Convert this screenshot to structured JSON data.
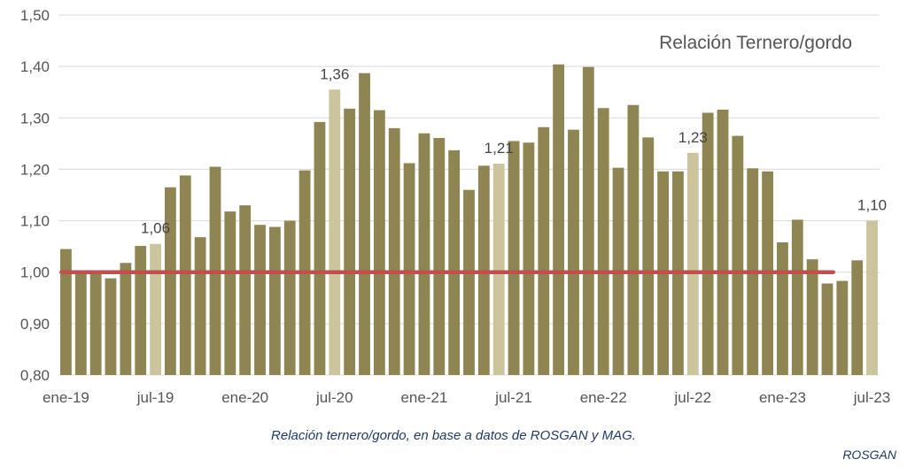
{
  "chart_data": {
    "type": "bar",
    "title": "Relación Ternero/gordo",
    "xlabel": "",
    "ylabel": "",
    "ylim": [
      0.8,
      1.5
    ],
    "yticks": [
      "0,80",
      "0,90",
      "1,00",
      "1,10",
      "1,20",
      "1,30",
      "1,40",
      "1,50"
    ],
    "xtick_labels": [
      "ene-19",
      "jul-19",
      "ene-20",
      "jul-20",
      "ene-21",
      "jul-21",
      "ene-22",
      "jul-22",
      "ene-23",
      "jul-23"
    ],
    "categories": [
      "ene-19",
      "feb-19",
      "mar-19",
      "abr-19",
      "may-19",
      "jun-19",
      "jul-19",
      "ago-19",
      "sep-19",
      "oct-19",
      "nov-19",
      "dic-19",
      "ene-20",
      "feb-20",
      "mar-20",
      "abr-20",
      "may-20",
      "jun-20",
      "jul-20",
      "ago-20",
      "sep-20",
      "oct-20",
      "nov-20",
      "dic-20",
      "ene-21",
      "feb-21",
      "mar-21",
      "abr-21",
      "may-21",
      "jun-21",
      "jul-21",
      "ago-21",
      "sep-21",
      "oct-21",
      "nov-21",
      "dic-21",
      "ene-22",
      "feb-22",
      "mar-22",
      "abr-22",
      "may-22",
      "jun-22",
      "jul-22",
      "ago-22",
      "sep-22",
      "oct-22",
      "nov-22",
      "dic-22",
      "ene-23",
      "feb-23",
      "mar-23",
      "abr-23",
      "may-23",
      "jun-23",
      "jul-23"
    ],
    "values": [
      1.045,
      1.0,
      0.997,
      0.988,
      1.018,
      1.051,
      1.055,
      1.165,
      1.188,
      1.068,
      1.205,
      1.118,
      1.13,
      1.092,
      1.088,
      1.1,
      1.198,
      1.292,
      1.355,
      1.318,
      1.387,
      1.315,
      1.28,
      1.212,
      1.27,
      1.261,
      1.237,
      1.16,
      1.207,
      1.211,
      1.255,
      1.252,
      1.282,
      1.404,
      1.277,
      1.399,
      1.319,
      1.203,
      1.325,
      1.262,
      1.196,
      1.196,
      1.232,
      1.31,
      1.316,
      1.265,
      1.202,
      1.196,
      1.058,
      1.102,
      1.025,
      0.978,
      0.983,
      1.023,
      1.1
    ],
    "highlight_indices": [
      6,
      18,
      29,
      42,
      54
    ],
    "data_labels": [
      {
        "index": 6,
        "text": "1,06"
      },
      {
        "index": 18,
        "text": "1,36"
      },
      {
        "index": 29,
        "text": "1,21"
      },
      {
        "index": 42,
        "text": "1,23"
      },
      {
        "index": 54,
        "text": "1,10"
      }
    ],
    "reference_line": {
      "value": 1.0,
      "from_index": 0,
      "to_index": 51
    },
    "colors": {
      "bar": "#8f8552",
      "highlight": "#cbc49c",
      "reference": "#c0504d",
      "grid": "#d9d9d9"
    },
    "grid": true,
    "legend": "none"
  },
  "caption": "Relación ternero/gordo, en base a datos de ROSGAN y MAG.",
  "source": "ROSGAN"
}
